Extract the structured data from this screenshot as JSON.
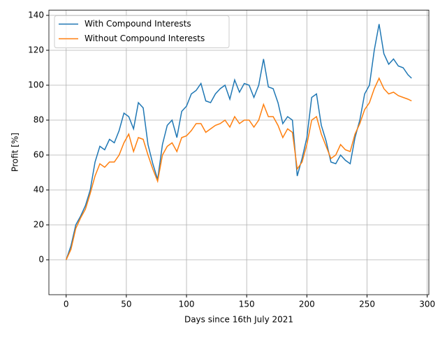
{
  "chart_data": {
    "type": "line",
    "xlabel": "Days since 16th July 2021",
    "ylabel": "Profit [%]",
    "x": [
      0,
      4,
      8,
      12,
      16,
      20,
      24,
      28,
      32,
      36,
      40,
      44,
      48,
      52,
      56,
      60,
      64,
      68,
      72,
      76,
      80,
      84,
      88,
      92,
      96,
      100,
      104,
      108,
      112,
      116,
      120,
      124,
      128,
      132,
      136,
      140,
      144,
      148,
      152,
      156,
      160,
      164,
      168,
      172,
      176,
      180,
      184,
      188,
      192,
      196,
      200,
      204,
      208,
      212,
      216,
      220,
      224,
      228,
      232,
      236,
      240,
      244,
      248,
      252,
      256,
      260,
      264,
      268,
      272,
      276,
      280,
      284,
      287
    ],
    "series": [
      {
        "name": "With Compound Interests",
        "color": "#1f77b4",
        "values": [
          0,
          8,
          20,
          25,
          31,
          40,
          56,
          65,
          63,
          69,
          67,
          74,
          84,
          82,
          75,
          90,
          87,
          66,
          55,
          46,
          66,
          77,
          80,
          70,
          85,
          88,
          95,
          97,
          101,
          91,
          90,
          95,
          98,
          100,
          92,
          103,
          96,
          101,
          100,
          93,
          100,
          115,
          99,
          98,
          90,
          78,
          82,
          80,
          48,
          58,
          70,
          93,
          95,
          77,
          68,
          56,
          55,
          60,
          57,
          55,
          70,
          80,
          95,
          100,
          120,
          135,
          118,
          112,
          115,
          111,
          110,
          106,
          104
        ]
      },
      {
        "name": "Without Compound Interests",
        "color": "#ff7f0e",
        "values": [
          0,
          6,
          18,
          24,
          29,
          38,
          48,
          55,
          53,
          56,
          56,
          60,
          67,
          72,
          62,
          70,
          69,
          60,
          52,
          45,
          60,
          65,
          67,
          62,
          70,
          71,
          74,
          78,
          78,
          73,
          75,
          77,
          78,
          80,
          76,
          82,
          78,
          80,
          80,
          76,
          80,
          89,
          82,
          82,
          77,
          70,
          75,
          73,
          52,
          56,
          66,
          80,
          82,
          72,
          65,
          58,
          60,
          66,
          63,
          62,
          72,
          78,
          86,
          90,
          98,
          104,
          98,
          95,
          96,
          94,
          93,
          92,
          91
        ]
      }
    ],
    "xlim": [
      -14.35,
      301.35
    ],
    "xticks": [
      0,
      50,
      100,
      150,
      200,
      250,
      300
    ],
    "ylim": [
      -20,
      143
    ],
    "yticks": [
      0,
      20,
      40,
      60,
      80,
      100,
      120,
      140
    ],
    "grid": true,
    "legend": "upper-left"
  }
}
